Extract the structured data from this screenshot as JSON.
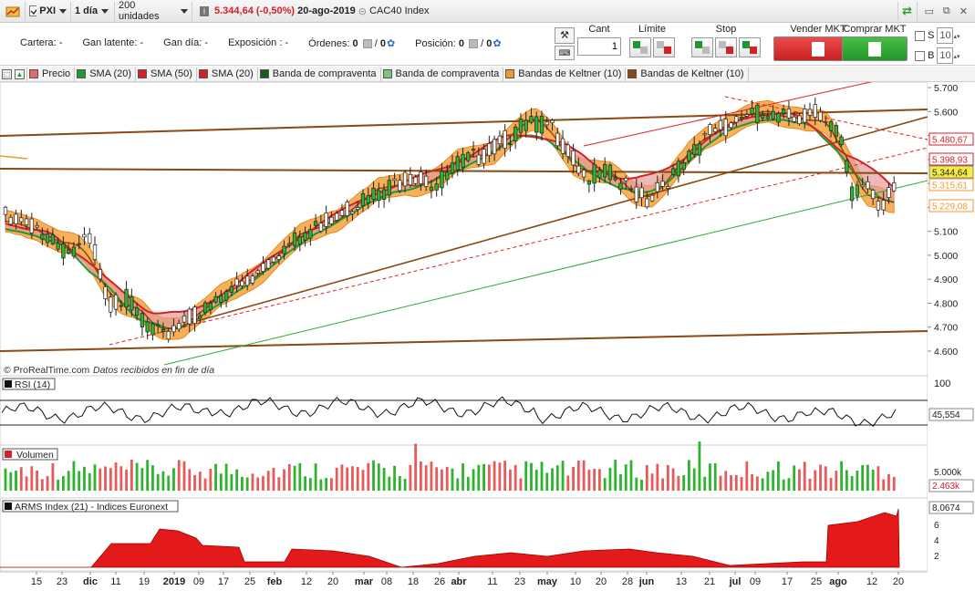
{
  "toolbar": {
    "symbol": "PXI",
    "timeframe": "1 día",
    "units": "200 unidades",
    "price": "5.344,64",
    "change": "(-0,50%)",
    "date": "20-ago-2019",
    "instrument": "CAC40 Index"
  },
  "account": {
    "cartera_label": "Cartera:",
    "cartera_value": "-",
    "latente_label": "Gan latente:",
    "latente_value": "-",
    "dia_label": "Gan día:",
    "dia_value": "-",
    "exposicion_label": "Exposición :",
    "exposicion_value": "-",
    "ordenes_label": "Órdenes:",
    "ordenes_value": "0",
    "ordenes_sep": "/",
    "ordenes_value2": "0",
    "posicion_label": "Posición:",
    "posicion_value": "0",
    "posicion_sep": "/",
    "posicion_value2": "0"
  },
  "orders": {
    "cant_label": "Cant",
    "cant_value": "1",
    "limite_label": "Límite",
    "stop_label": "Stop",
    "sell_label": "Vender MKT",
    "buy_label": "Comprar MKT",
    "s_label": "S",
    "b_label": "B",
    "s_value": "10",
    "b_value": "10"
  },
  "legend": [
    {
      "label": "Precio",
      "color": "#e06a6a"
    },
    {
      "label": "SMA (20)",
      "color": "#1e9a32"
    },
    {
      "label": "SMA (50)",
      "color": "#d2212b"
    },
    {
      "label": "SMA (20)",
      "color": "#d2212b"
    },
    {
      "label": "Banda de compraventa",
      "color": "#1a5a1a"
    },
    {
      "label": "Banda de compraventa",
      "color": "#7cc77c"
    },
    {
      "label": "Bandas de Keltner (10)",
      "color": "#f29a2e"
    },
    {
      "label": "Bandas de Keltner (10)",
      "color": "#8a4a12"
    }
  ],
  "watermark": "© ProRealTime.com",
  "watermark_note": "Datos recibidos en fin de día",
  "price_axis": {
    "ticks": [
      "5.700",
      "5.600",
      "5.500",
      "5.400",
      "5.300",
      "5.200",
      "5.100",
      "5.000",
      "4.900",
      "4.800",
      "4.700",
      "4.600"
    ],
    "labels": [
      {
        "text": "5.480,67",
        "color": "#d2212b"
      },
      {
        "text": "5.398,93",
        "color": "#d2212b"
      },
      {
        "text": "5.344,64",
        "color": "#222222"
      },
      {
        "text": "5.315,61",
        "color": "#f29a2e"
      },
      {
        "text": "5.229,08",
        "color": "#f29a2e"
      }
    ]
  },
  "rsi": {
    "title": "RSI (14)",
    "top": "100",
    "value": "45,554"
  },
  "volume": {
    "title": "Volumen",
    "tick": "5.000k",
    "value": "2.463k"
  },
  "arms": {
    "title": "ARMS Index (21) - Indices Euronext",
    "value": "8,0674",
    "ticks": [
      "6",
      "4",
      "2"
    ]
  },
  "x_axis": [
    "15",
    "23",
    "dic",
    "11",
    "19",
    "2019",
    "09",
    "17",
    "25",
    "feb",
    "12",
    "20",
    "mar",
    "08",
    "18",
    "26",
    "abr",
    "11",
    "23",
    "may",
    "10",
    "20",
    "28",
    "jun",
    "13",
    "21",
    "jul",
    "09",
    "17",
    "25",
    "ago",
    "12",
    "20"
  ]
}
